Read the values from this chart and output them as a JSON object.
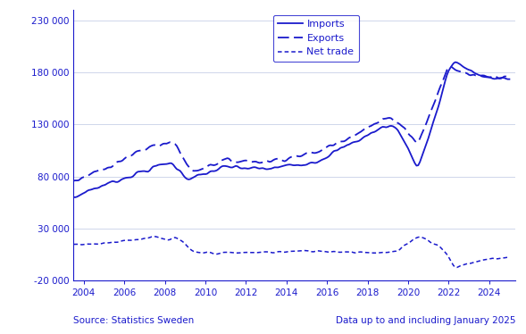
{
  "color": "#1a1acc",
  "background": "#ffffff",
  "ylim": [
    -20000,
    240000
  ],
  "yticks": [
    -20000,
    30000,
    80000,
    130000,
    180000,
    230000
  ],
  "xlim_start": 2003.5,
  "xlim_end": 2025.3,
  "xticks": [
    2004,
    2006,
    2008,
    2010,
    2012,
    2014,
    2016,
    2018,
    2020,
    2022,
    2024
  ],
  "source_text": "Source: Statistics Sweden",
  "data_text": "Data up to and including January 2025",
  "legend_items": [
    "Imports",
    "Exports",
    "Net trade"
  ],
  "grid_color": "#c8d0e8",
  "font_color": "#1a1acc"
}
